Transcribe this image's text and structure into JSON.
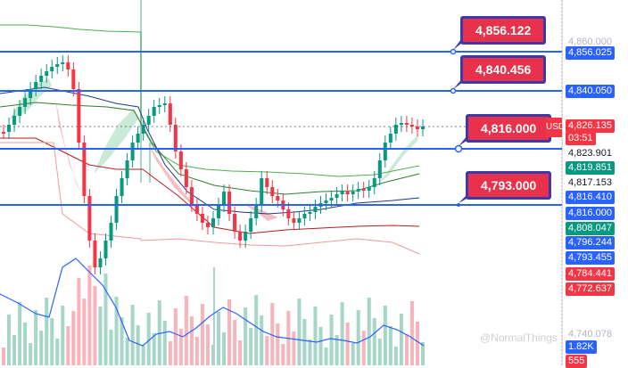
{
  "colors": {
    "accent": "#2962ff",
    "up": "#089981",
    "down": "#f23645",
    "callout": "#e8314a"
  },
  "price_axis": {
    "labels": [
      {
        "text": "4,860.000",
        "style": "grey"
      },
      {
        "text": "4,856.025",
        "style": "blue"
      },
      {
        "text": "4,840.050",
        "style": "blue"
      },
      {
        "text": "4,826.135",
        "style": "red"
      },
      {
        "text": "03:51",
        "style": "red"
      },
      {
        "text": "4,823.901",
        "style": "plain"
      },
      {
        "text": "4,819.851",
        "style": "green"
      },
      {
        "text": "4,817.153",
        "style": "plain"
      },
      {
        "text": "4,816.410",
        "style": "blue"
      },
      {
        "text": "4,816.000",
        "style": "blue"
      },
      {
        "text": "4,808.047",
        "style": "green"
      },
      {
        "text": "4,796.244",
        "style": "blue"
      },
      {
        "text": "4,793.455",
        "style": "blue"
      },
      {
        "text": "4,784.441",
        "style": "red"
      },
      {
        "text": "4,772.637",
        "style": "red"
      },
      {
        "text": "4,740.078",
        "style": "grey"
      },
      {
        "text": "1.82K",
        "style": "blue"
      },
      {
        "text": "555",
        "style": "red"
      }
    ]
  },
  "current_price_tag": "USD",
  "callouts": [
    {
      "text": "4,856.122"
    },
    {
      "text": "4,840.456"
    },
    {
      "text": "4,816.000"
    },
    {
      "text": "4,793.000"
    }
  ],
  "watermark": "@NormalThings"
}
